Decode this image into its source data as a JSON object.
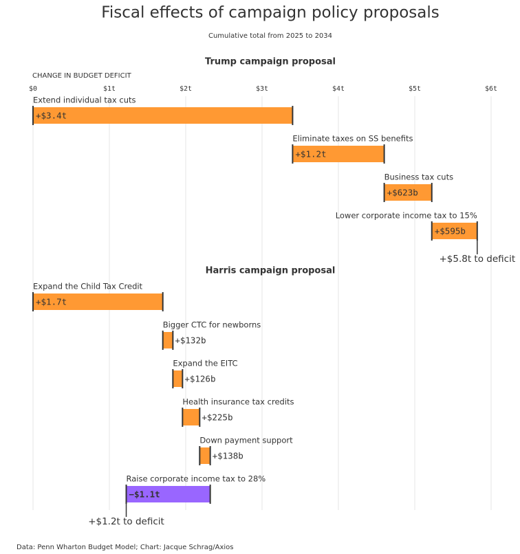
{
  "chart_data": {
    "type": "waterfall",
    "title": "Fiscal effects of campaign policy proposals",
    "subtitle": "Cumulative total from 2025 to 2034",
    "axis_label": "CHANGE IN BUDGET DEFICIT",
    "xlim": [
      0,
      6
    ],
    "xticks": [
      {
        "value": 0,
        "label": "$0"
      },
      {
        "value": 1,
        "label": "$1t"
      },
      {
        "value": 2,
        "label": "$2t"
      },
      {
        "value": 3,
        "label": "$3t"
      },
      {
        "value": 4,
        "label": "$4t"
      },
      {
        "value": 5,
        "label": "$5t"
      },
      {
        "value": 6,
        "label": "$6t"
      }
    ],
    "grid": true,
    "color": "#ff9933",
    "negative_color": "#9966ff",
    "panels": [
      {
        "title": "Trump campaign proposal",
        "categories": [
          "Extend individual tax cuts",
          "Eliminate taxes on SS benefits",
          "Business tax cuts",
          "Lower corporate income tax to 15%"
        ],
        "values": [
          3.4,
          1.2,
          0.623,
          0.595
        ],
        "value_labels": [
          "+$3.4t",
          "+$1.2t",
          "+$623b",
          "+$595b"
        ],
        "total_label": "+$5.8t to deficit"
      },
      {
        "title": "Harris campaign proposal",
        "categories": [
          "Expand the Child Tax Credit",
          "Bigger CTC for newborns",
          "Expand the EITC",
          "Health insurance tax credits",
          "Down payment support",
          "Raise corporate income tax to 28%"
        ],
        "values": [
          1.7,
          0.132,
          0.126,
          0.225,
          0.138,
          -1.1
        ],
        "value_labels": [
          "+$1.7t",
          "+$132b",
          "+$126b",
          "+$225b",
          "+$138b",
          "−$1.1t"
        ],
        "total_label": "+$1.2t to deficit"
      }
    ],
    "source": "Data: Penn Wharton Budget Model; Chart: Jacque Schrag/Axios"
  }
}
